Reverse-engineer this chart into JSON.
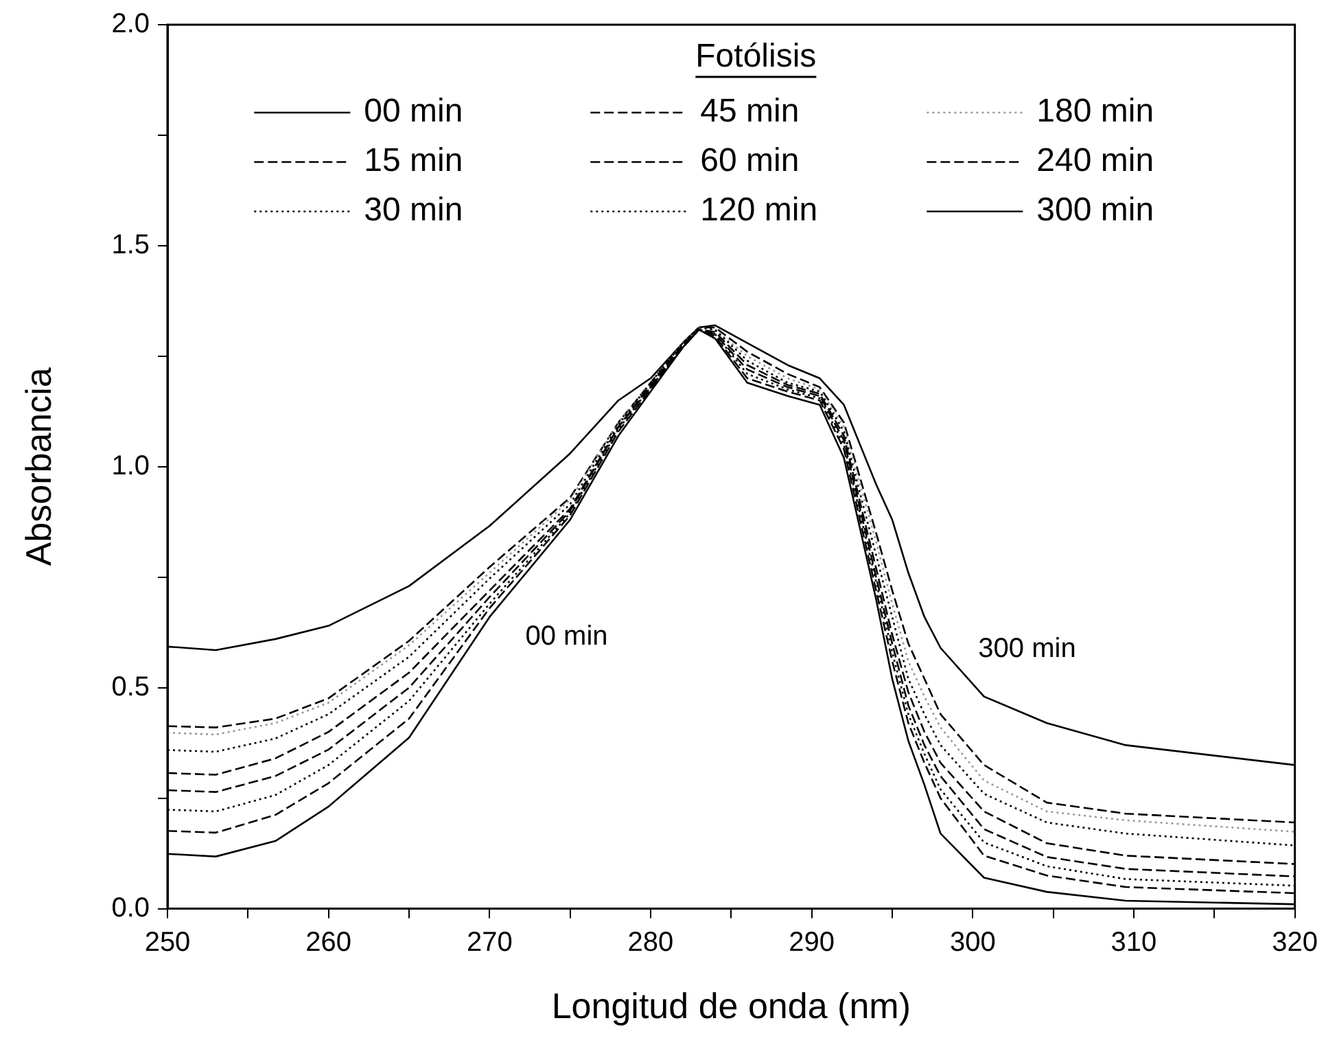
{
  "chart_data": {
    "type": "line",
    "xlabel": "Longitud de onda (nm)",
    "ylabel": "Absorbancia",
    "legend_title": "Fotólisis",
    "legend": "top",
    "xlim": [
      250,
      320
    ],
    "ylim": [
      0,
      2
    ],
    "xticks": [
      250,
      {
        "value": 255,
        "label": null
      },
      260,
      {
        "value": 265,
        "label": null
      },
      270,
      {
        "value": 275,
        "label": null
      },
      280,
      {
        "value": 285,
        "label": null
      },
      290,
      {
        "value": 295,
        "label": null
      },
      300,
      {
        "value": 305,
        "label": null
      },
      310,
      {
        "value": 315,
        "label": null
      },
      320
    ],
    "yticks": [
      {
        "value": 0,
        "label": "0.0"
      },
      {
        "value": 0.25,
        "label": null
      },
      {
        "value": 0.5,
        "label": "0.5"
      },
      {
        "value": 0.75,
        "label": null
      },
      {
        "value": 1,
        "label": "1.0"
      },
      {
        "value": 1.25,
        "label": null
      },
      {
        "value": 1.5,
        "label": "1.5"
      },
      {
        "value": 1.75,
        "label": null
      },
      {
        "value": 2,
        "label": "2.0"
      }
    ],
    "x": [
      250,
      253,
      256.7,
      260,
      265,
      270,
      275,
      278,
      280,
      282,
      283,
      284,
      286,
      288.5,
      290.5,
      292,
      294,
      295,
      296,
      297,
      298,
      300.7,
      304.6,
      309.5,
      320
    ],
    "series": [
      {
        "name": "00 min",
        "color": "#000000",
        "line_style": "solid",
        "values": [
          0.124,
          0.118,
          0.153,
          0.231,
          0.387,
          0.66,
          0.88,
          1.07,
          1.17,
          1.27,
          1.31,
          1.29,
          1.19,
          1.16,
          1.14,
          1.02,
          0.7,
          0.52,
          0.38,
          0.28,
          0.17,
          0.07,
          0.038,
          0.018,
          0.01
        ]
      },
      {
        "name": "15 min",
        "color": "#000000",
        "line_style": "dashed",
        "values": [
          0.176,
          0.172,
          0.212,
          0.284,
          0.43,
          0.68,
          0.89,
          1.08,
          1.175,
          1.27,
          1.31,
          1.295,
          1.2,
          1.17,
          1.15,
          1.04,
          0.72,
          0.56,
          0.42,
          0.33,
          0.25,
          0.12,
          0.075,
          0.049,
          0.035
        ]
      },
      {
        "name": "30 min",
        "color": "#000000",
        "line_style": "dotted",
        "values": [
          0.224,
          0.22,
          0.257,
          0.325,
          0.47,
          0.69,
          0.895,
          1.085,
          1.18,
          1.27,
          1.31,
          1.3,
          1.21,
          1.175,
          1.155,
          1.05,
          0.74,
          0.58,
          0.44,
          0.35,
          0.27,
          0.15,
          0.096,
          0.067,
          0.052
        ]
      },
      {
        "name": "45 min",
        "color": "#000000",
        "line_style": "dashed",
        "values": [
          0.268,
          0.264,
          0.3,
          0.36,
          0.5,
          0.705,
          0.9,
          1.09,
          1.18,
          1.275,
          1.31,
          1.3,
          1.22,
          1.18,
          1.16,
          1.06,
          0.75,
          0.6,
          0.46,
          0.37,
          0.3,
          0.18,
          0.117,
          0.09,
          0.073
        ]
      },
      {
        "name": "60 min",
        "color": "#000000",
        "line_style": "dashed",
        "values": [
          0.307,
          0.303,
          0.34,
          0.4,
          0.534,
          0.72,
          0.905,
          1.09,
          1.185,
          1.275,
          1.31,
          1.305,
          1.23,
          1.185,
          1.165,
          1.07,
          0.77,
          0.62,
          0.49,
          0.4,
          0.33,
          0.22,
          0.148,
          0.12,
          0.101
        ]
      },
      {
        "name": "120 min",
        "color": "#000000",
        "line_style": "dotted",
        "values": [
          0.359,
          0.355,
          0.385,
          0.44,
          0.57,
          0.747,
          0.915,
          1.095,
          1.19,
          1.28,
          1.315,
          1.31,
          1.24,
          1.19,
          1.17,
          1.08,
          0.8,
          0.66,
          0.52,
          0.44,
          0.37,
          0.26,
          0.195,
          0.17,
          0.143
        ]
      },
      {
        "name": "180 min",
        "color": "#999999",
        "line_style": "dotted",
        "values": [
          0.398,
          0.394,
          0.42,
          0.466,
          0.596,
          0.76,
          0.925,
          1.1,
          1.19,
          1.28,
          1.315,
          1.31,
          1.25,
          1.2,
          1.175,
          1.09,
          0.83,
          0.69,
          0.56,
          0.48,
          0.41,
          0.29,
          0.22,
          0.2,
          0.174
        ]
      },
      {
        "name": "240 min",
        "color": "#000000",
        "line_style": "dashed",
        "values": [
          0.413,
          0.41,
          0.43,
          0.476,
          0.606,
          0.773,
          0.93,
          1.1,
          1.19,
          1.28,
          1.315,
          1.315,
          1.26,
          1.21,
          1.18,
          1.1,
          0.85,
          0.72,
          0.6,
          0.52,
          0.44,
          0.325,
          0.24,
          0.215,
          0.195
        ]
      },
      {
        "name": "300 min",
        "color": "#000000",
        "line_style": "solid",
        "values": [
          0.593,
          0.585,
          0.61,
          0.64,
          0.73,
          0.866,
          1.03,
          1.15,
          1.2,
          1.28,
          1.315,
          1.32,
          1.28,
          1.23,
          1.2,
          1.14,
          0.96,
          0.88,
          0.76,
          0.66,
          0.59,
          0.48,
          0.42,
          0.37,
          0.325
        ]
      }
    ],
    "annotations": [
      "00 min",
      "300 min"
    ]
  }
}
